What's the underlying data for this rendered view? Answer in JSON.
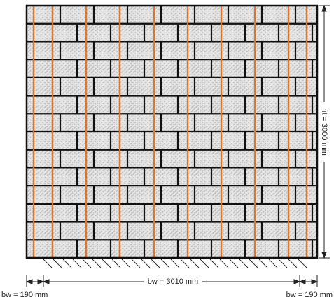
{
  "dimensions": {
    "height": "ht = 3000 mm",
    "width": "bw = 3010 mm",
    "left_end": "bw = 190 mm",
    "right_end": "bw = 190 mm"
  }
}
